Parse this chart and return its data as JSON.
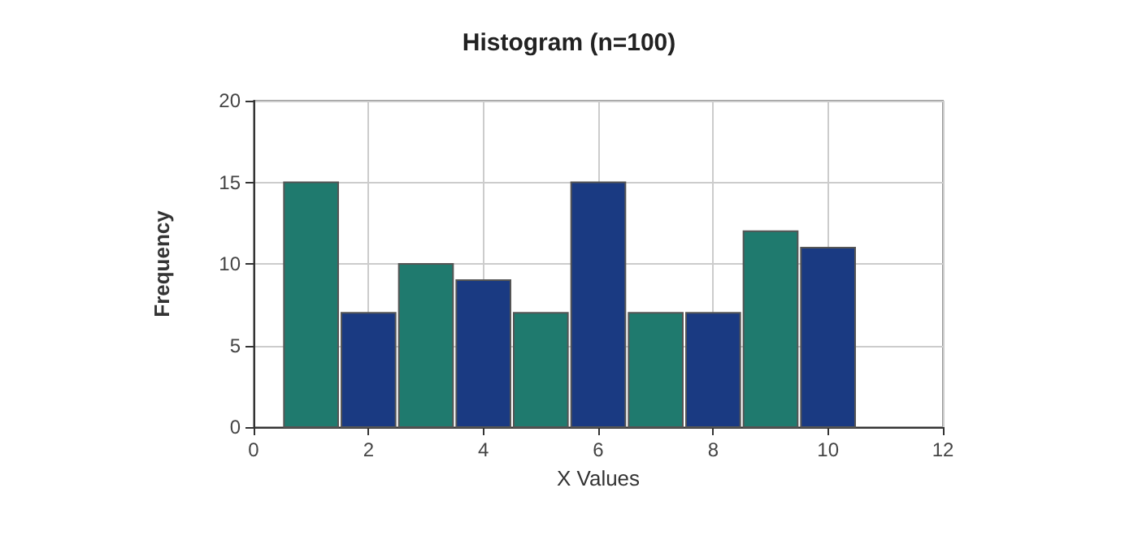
{
  "chart_data": {
    "type": "histogram",
    "title": "Histogram (n=100)",
    "xlabel": "X Values",
    "ylabel": "Frequency",
    "bins": [
      0.5,
      1.5,
      2.5,
      3.5,
      4.5,
      5.5,
      6.5,
      7.5,
      8.5,
      9.5,
      10.5
    ],
    "values": [
      15,
      7,
      10,
      9,
      7,
      15,
      7,
      7,
      12,
      11
    ],
    "colors": [
      "#1f7a6e",
      "#1a3a82",
      "#1f7a6e",
      "#1a3a82",
      "#1f7a6e",
      "#1a3a82",
      "#1f7a6e",
      "#1a3a82",
      "#1f7a6e",
      "#1a3a82"
    ],
    "xlim": [
      0,
      12
    ],
    "xticks": [
      0,
      2,
      4,
      6,
      8,
      10,
      12
    ],
    "ylim": [
      0,
      20
    ],
    "yticks": [
      0,
      5,
      10,
      15,
      20
    ],
    "grid": true
  }
}
